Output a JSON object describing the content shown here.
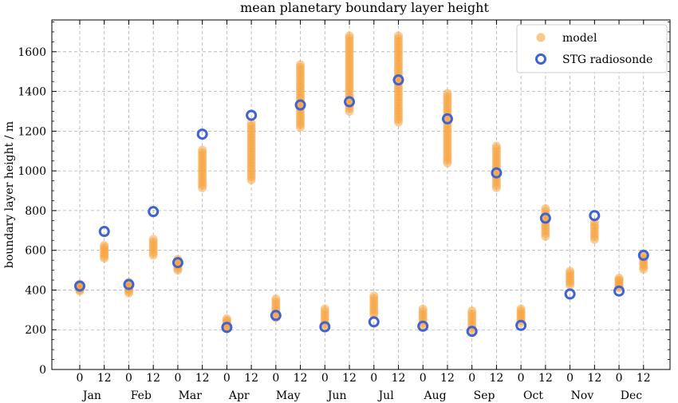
{
  "chart_data": {
    "type": "scatter",
    "title": "mean planetary boundary layer height",
    "xlabel": "",
    "ylabel": "boundary layer height / m",
    "ylim": [
      0,
      1760
    ],
    "yticks": [
      0,
      200,
      400,
      600,
      800,
      1000,
      1200,
      1400,
      1600
    ],
    "hour_tick_labels": [
      "0",
      "12"
    ],
    "months": [
      "Jan",
      "Feb",
      "Mar",
      "Apr",
      "May",
      "Jun",
      "Jul",
      "Aug",
      "Sep",
      "Oct",
      "Nov",
      "Dec"
    ],
    "grid": true,
    "legend_position": "top-right",
    "colors": {
      "model": "#f7a440",
      "radiosonde": "#3f63d6"
    },
    "series": [
      {
        "name": "model",
        "marker": "filled-circle",
        "ranges": [
          {
            "month": "Jan",
            "hour": 0,
            "min": 395,
            "max": 430
          },
          {
            "month": "Jan",
            "hour": 12,
            "min": 560,
            "max": 625
          },
          {
            "month": "Feb",
            "hour": 0,
            "min": 385,
            "max": 440
          },
          {
            "month": "Feb",
            "hour": 12,
            "min": 575,
            "max": 655
          },
          {
            "month": "Mar",
            "hour": 0,
            "min": 500,
            "max": 555
          },
          {
            "month": "Mar",
            "hour": 12,
            "min": 915,
            "max": 1105
          },
          {
            "month": "Apr",
            "hour": 0,
            "min": 205,
            "max": 255
          },
          {
            "month": "Apr",
            "hour": 12,
            "min": 955,
            "max": 1240
          },
          {
            "month": "May",
            "hour": 0,
            "min": 260,
            "max": 355
          },
          {
            "month": "May",
            "hour": 12,
            "min": 1220,
            "max": 1535
          },
          {
            "month": "Jun",
            "hour": 0,
            "min": 215,
            "max": 305
          },
          {
            "month": "Jun",
            "hour": 12,
            "min": 1300,
            "max": 1680
          },
          {
            "month": "Jul",
            "hour": 0,
            "min": 275,
            "max": 370
          },
          {
            "month": "Jul",
            "hour": 12,
            "min": 1245,
            "max": 1680
          },
          {
            "month": "Aug",
            "hour": 0,
            "min": 220,
            "max": 305
          },
          {
            "month": "Aug",
            "hour": 12,
            "min": 1040,
            "max": 1390
          },
          {
            "month": "Sep",
            "hour": 0,
            "min": 195,
            "max": 295
          },
          {
            "month": "Sep",
            "hour": 12,
            "min": 915,
            "max": 1125
          },
          {
            "month": "Oct",
            "hour": 0,
            "min": 235,
            "max": 305
          },
          {
            "month": "Oct",
            "hour": 12,
            "min": 670,
            "max": 810
          },
          {
            "month": "Nov",
            "hour": 0,
            "min": 425,
            "max": 495
          },
          {
            "month": "Nov",
            "hour": 12,
            "min": 655,
            "max": 740
          },
          {
            "month": "Dec",
            "hour": 0,
            "min": 410,
            "max": 460
          },
          {
            "month": "Dec",
            "hour": 12,
            "min": 505,
            "max": 580
          }
        ]
      },
      {
        "name": "STG radiosonde",
        "marker": "hollow-circle",
        "points": [
          {
            "month": "Jan",
            "hour": 0,
            "y": 420
          },
          {
            "month": "Jan",
            "hour": 12,
            "y": 695
          },
          {
            "month": "Feb",
            "hour": 0,
            "y": 428
          },
          {
            "month": "Feb",
            "hour": 12,
            "y": 795
          },
          {
            "month": "Mar",
            "hour": 0,
            "y": 538
          },
          {
            "month": "Mar",
            "hour": 12,
            "y": 1185
          },
          {
            "month": "Apr",
            "hour": 0,
            "y": 212
          },
          {
            "month": "Apr",
            "hour": 12,
            "y": 1280
          },
          {
            "month": "May",
            "hour": 0,
            "y": 272
          },
          {
            "month": "May",
            "hour": 12,
            "y": 1332
          },
          {
            "month": "Jun",
            "hour": 0,
            "y": 215
          },
          {
            "month": "Jun",
            "hour": 12,
            "y": 1348
          },
          {
            "month": "Jul",
            "hour": 0,
            "y": 240
          },
          {
            "month": "Jul",
            "hour": 12,
            "y": 1458
          },
          {
            "month": "Aug",
            "hour": 0,
            "y": 218
          },
          {
            "month": "Aug",
            "hour": 12,
            "y": 1262
          },
          {
            "month": "Sep",
            "hour": 0,
            "y": 192
          },
          {
            "month": "Sep",
            "hour": 12,
            "y": 990
          },
          {
            "month": "Oct",
            "hour": 0,
            "y": 222
          },
          {
            "month": "Oct",
            "hour": 12,
            "y": 762
          },
          {
            "month": "Nov",
            "hour": 0,
            "y": 380
          },
          {
            "month": "Nov",
            "hour": 12,
            "y": 775
          },
          {
            "month": "Dec",
            "hour": 0,
            "y": 395
          },
          {
            "month": "Dec",
            "hour": 12,
            "y": 575
          }
        ]
      }
    ]
  }
}
